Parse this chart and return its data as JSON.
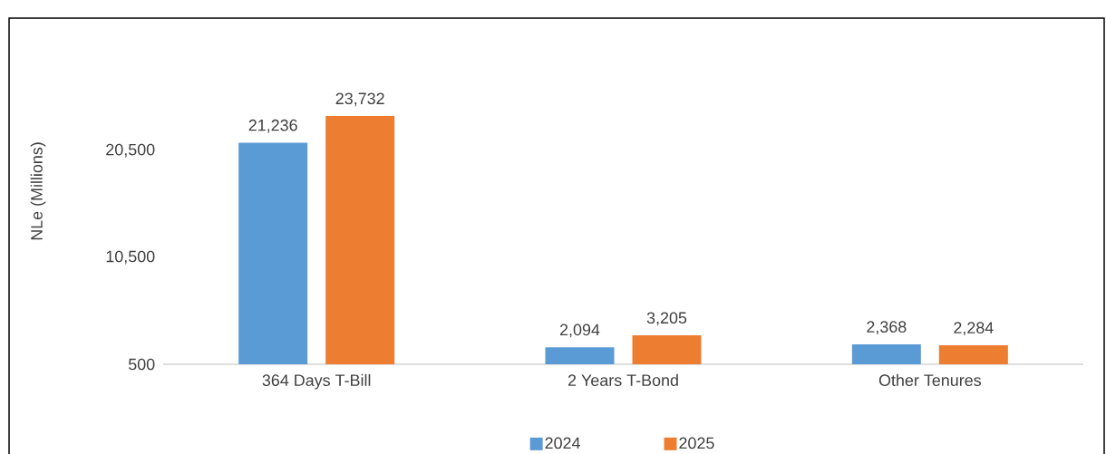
{
  "chart_data": {
    "type": "bar",
    "ylabel": "NLe (Millions)",
    "categories": [
      "364 Days T-Bill",
      "2 Years T-Bond",
      "Other Tenures"
    ],
    "series": [
      {
        "name": "2024",
        "color": "#5b9bd5",
        "values": [
          21236,
          2094,
          2368
        ],
        "value_labels": [
          "21,236",
          "2,094",
          "2,368"
        ]
      },
      {
        "name": "2025",
        "color": "#ed7d31",
        "values": [
          23732,
          3205,
          2284
        ],
        "value_labels": [
          "23,732",
          "3,205",
          "2,284"
        ]
      }
    ],
    "ylim": [
      500,
      32900
    ],
    "yticks": [
      {
        "value": 500,
        "label": "500"
      },
      {
        "value": 10500,
        "label": "10,500"
      },
      {
        "value": 20500,
        "label": "20,500"
      }
    ],
    "legend": "bottom",
    "grid": false
  }
}
